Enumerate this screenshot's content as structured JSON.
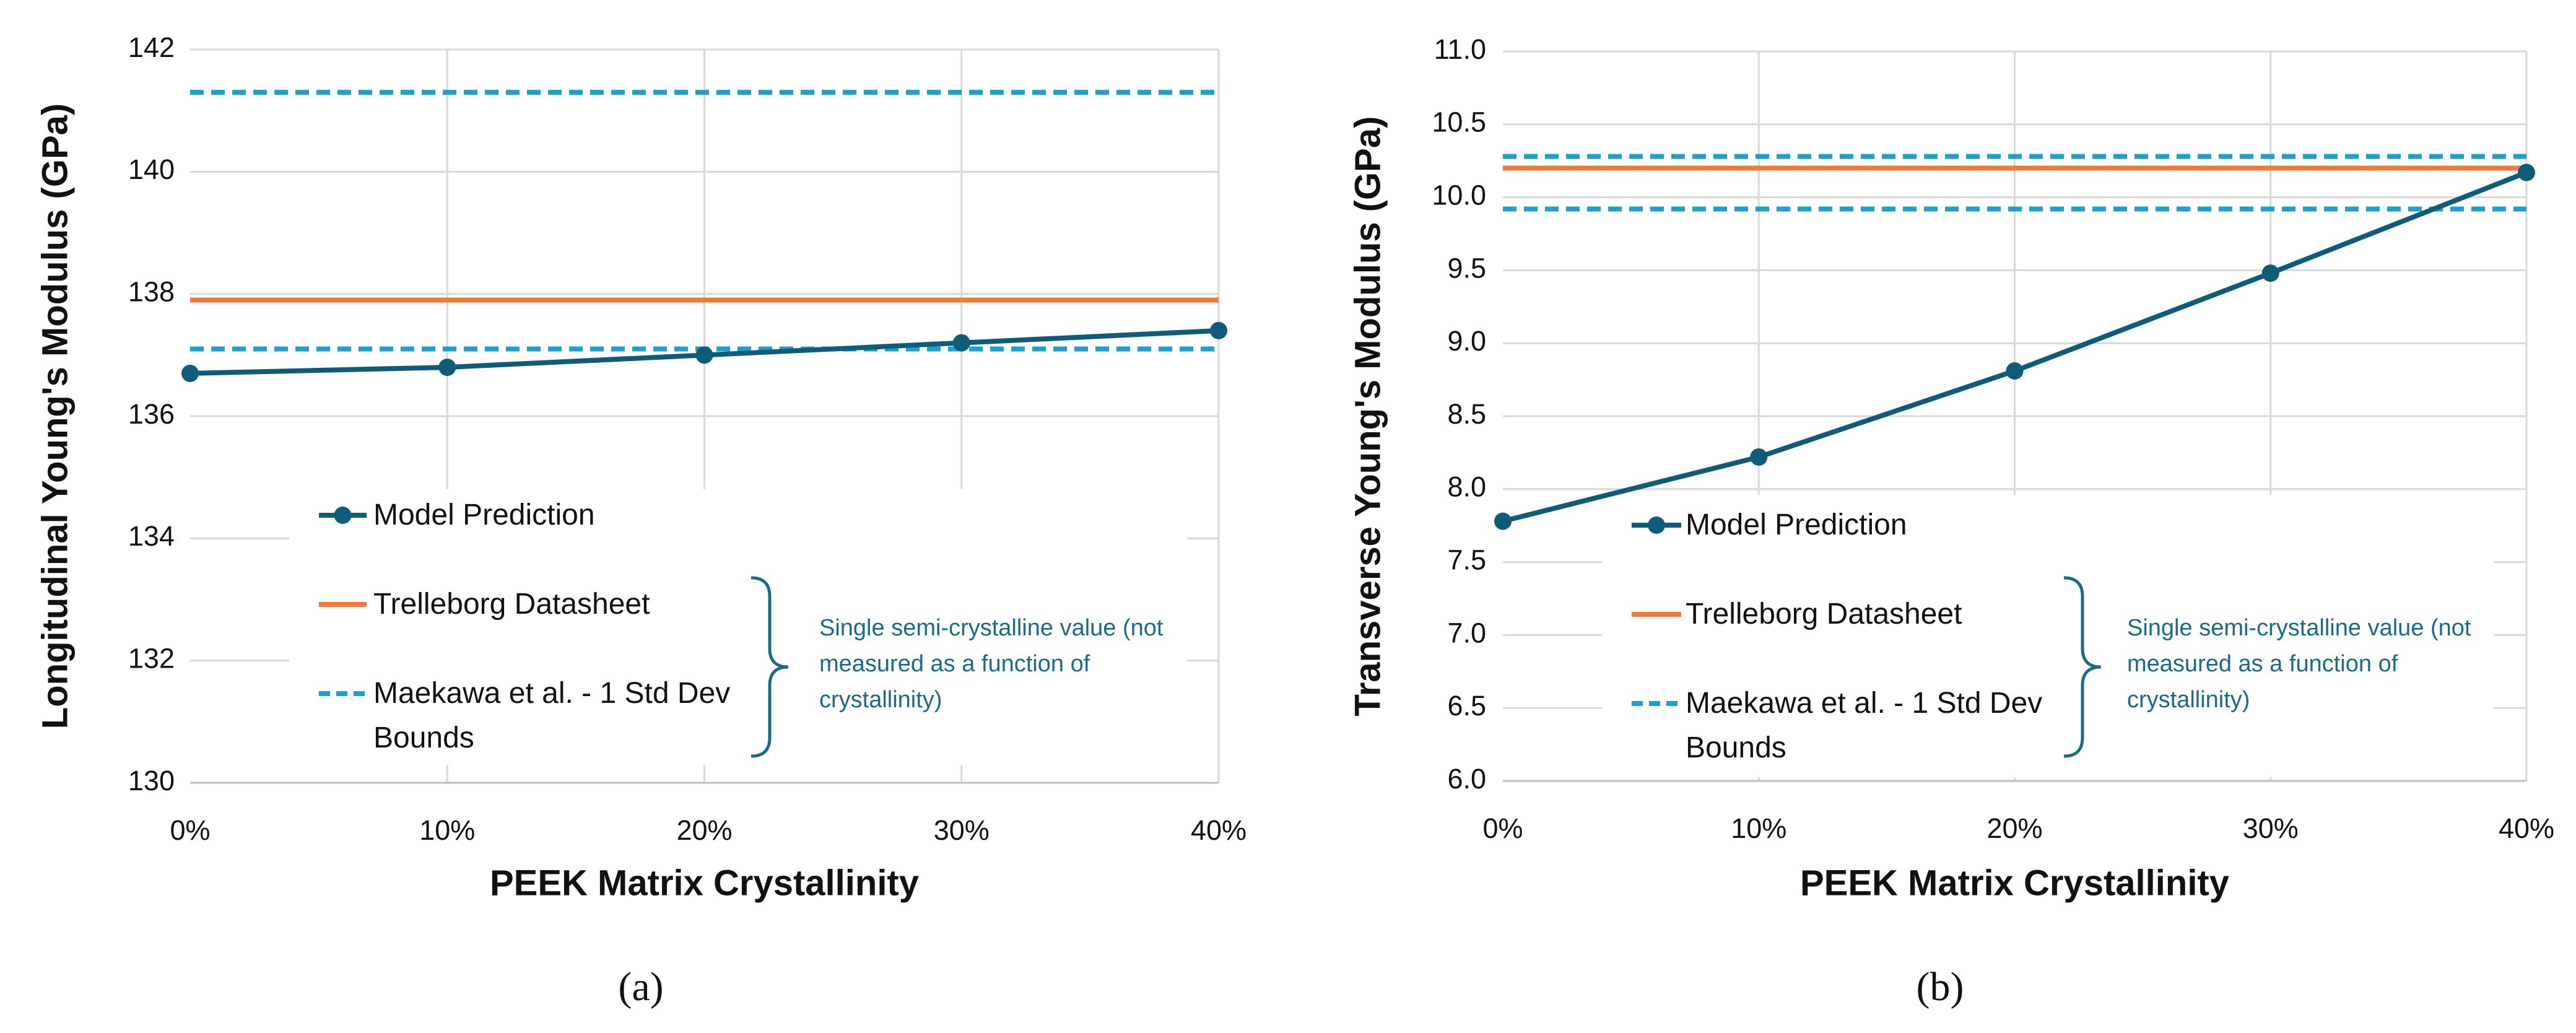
{
  "chart_data": [
    {
      "type": "line",
      "panel_label": "(a)",
      "x_label": "PEEK Matrix Crystallinity",
      "y_label": "Longitudinal Young's Modulus (GPa)",
      "categories": [
        "0%",
        "10%",
        "20%",
        "30%",
        "40%"
      ],
      "series": [
        {
          "name": "Model Prediction",
          "color": "#0f5c7a",
          "values": [
            136.7,
            136.8,
            137.0,
            137.2,
            137.4
          ]
        }
      ],
      "reference_lines": [
        {
          "name": "Trelleborg Datasheet",
          "color": "#f07a3a",
          "values": [
            137.9
          ],
          "dashed": false
        },
        {
          "name": "Maekawa et al. - 1 Std Dev Bounds",
          "color": "#1ca0d0",
          "values": [
            141.3,
            137.1
          ],
          "dashed": true
        }
      ],
      "annotation": "Single semi-crystalline value (not measured as a function of crystallinity)",
      "ylim": [
        130,
        142
      ],
      "yticks": [
        130,
        132,
        134,
        136,
        138,
        140,
        142
      ],
      "grid": true
    },
    {
      "type": "line",
      "panel_label": "(b)",
      "x_label": "PEEK Matrix Crystallinity",
      "y_label": "Transverse Young's Modulus (GPa)",
      "categories": [
        "0%",
        "10%",
        "20%",
        "30%",
        "40%"
      ],
      "series": [
        {
          "name": "Model Prediction",
          "color": "#0f5c7a",
          "values": [
            7.78,
            8.22,
            8.81,
            9.48,
            10.17
          ]
        }
      ],
      "reference_lines": [
        {
          "name": "Trelleborg Datasheet",
          "color": "#f07a3a",
          "values": [
            10.2
          ],
          "dashed": false
        },
        {
          "name": "Maekawa et al. - 1 Std Dev Bounds",
          "color": "#1ca0d0",
          "values": [
            10.28,
            9.92
          ],
          "dashed": true
        }
      ],
      "annotation": "Single semi-crystalline value (not measured as a function of crystallinity)",
      "ylim": [
        6.0,
        11.0
      ],
      "yticks": [
        {
          "value": 6,
          "label": "6.0"
        },
        {
          "value": 6.5,
          "label": "6.5"
        },
        {
          "value": 7,
          "label": "7.0"
        },
        {
          "value": 7.5,
          "label": "7.5"
        },
        {
          "value": 8,
          "label": "8.0"
        },
        {
          "value": 8.5,
          "label": "8.5"
        },
        {
          "value": 9,
          "label": "9.0"
        },
        {
          "value": 9.5,
          "label": "9.5"
        },
        {
          "value": 10,
          "label": "10.0"
        },
        {
          "value": 10.5,
          "label": "10.5"
        },
        {
          "value": 11,
          "label": "11.0"
        }
      ],
      "grid": true
    }
  ]
}
